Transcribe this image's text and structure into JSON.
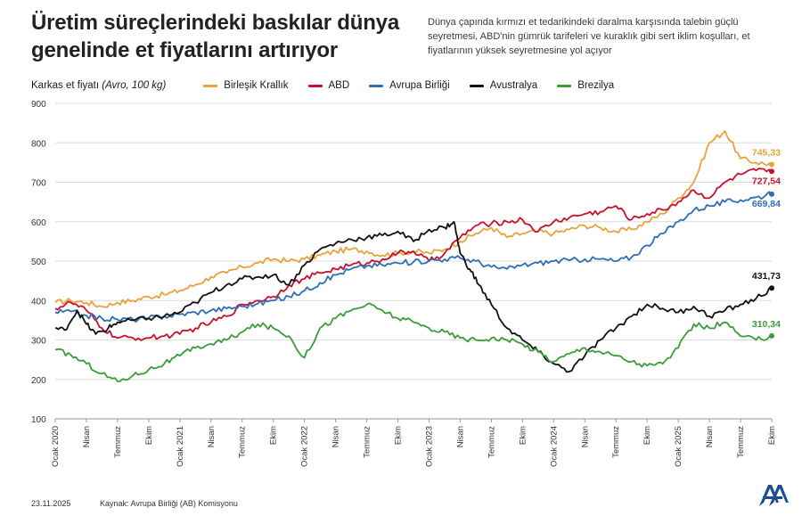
{
  "title": "Üretim süreçlerindeki baskılar dünya genelinde et fiyatlarını artırıyor",
  "subtitle": "Dünya çapında kırmızı et tedarikindeki daralma karşısında talebin güçlü seyretmesi, ABD'nin gümrük tarifeleri ve kuraklık gibi sert iklim koşulları, et fiyatlarının yüksek seyretmesine yol açıyor",
  "unit_label": "Karkas et fiyatı",
  "unit_label_italic": "(Avro, 100 kg)",
  "footer": {
    "date": "23.11.2025",
    "source": "Kaynak: Avrupa Birliği (AB) Komisyonu"
  },
  "chart_data": {
    "type": "line",
    "ylim": [
      100,
      900
    ],
    "yticks": [
      100,
      200,
      300,
      400,
      500,
      600,
      700,
      800,
      900
    ],
    "grid": true,
    "legend_position": "top",
    "x_tick_labels": [
      "Ocak 2020",
      "Nisan",
      "Temmuz",
      "Ekim",
      "Ocak 2021",
      "Nisan",
      "Temmuz",
      "Ekim",
      "Ocak 2022",
      "Nisan",
      "Temmuz",
      "Ekim",
      "Ocak 2023",
      "Nisan",
      "Temmuz",
      "Ekim",
      "Ocak 2024",
      "Nisan",
      "Temmuz",
      "Ekim",
      "Ocak 2025",
      "Nisan",
      "Temmuz",
      "Ekim"
    ],
    "x_range_months": [
      0,
      23
    ],
    "series": [
      {
        "name": "Birleşik Krallık",
        "color": "#E8A33A",
        "end_label": "745,33",
        "points": [
          [
            0,
            395
          ],
          [
            0.5,
            400
          ],
          [
            1,
            395
          ],
          [
            1.5,
            385
          ],
          [
            2,
            395
          ],
          [
            2.5,
            400
          ],
          [
            3,
            410
          ],
          [
            3.5,
            415
          ],
          [
            4,
            425
          ],
          [
            4.5,
            440
          ],
          [
            5,
            460
          ],
          [
            5.5,
            470
          ],
          [
            6,
            485
          ],
          [
            6.5,
            495
          ],
          [
            7,
            505
          ],
          [
            7.5,
            500
          ],
          [
            8,
            505
          ],
          [
            8.5,
            515
          ],
          [
            9,
            525
          ],
          [
            9.5,
            530
          ],
          [
            10,
            525
          ],
          [
            10.5,
            515
          ],
          [
            11,
            520
          ],
          [
            11.5,
            525
          ],
          [
            12,
            520
          ],
          [
            12.5,
            530
          ],
          [
            13,
            550
          ],
          [
            13.5,
            570
          ],
          [
            14,
            585
          ],
          [
            14.5,
            560
          ],
          [
            15,
            570
          ],
          [
            15.5,
            575
          ],
          [
            16,
            570
          ],
          [
            16.5,
            580
          ],
          [
            17,
            590
          ],
          [
            17.5,
            585
          ],
          [
            18,
            575
          ],
          [
            18.5,
            580
          ],
          [
            19,
            600
          ],
          [
            19.5,
            620
          ],
          [
            20,
            660
          ],
          [
            20.5,
            700
          ],
          [
            21,
            800
          ],
          [
            21.5,
            830
          ],
          [
            22,
            760
          ],
          [
            22.5,
            750
          ],
          [
            23,
            745.33
          ]
        ]
      },
      {
        "name": "ABD",
        "color": "#C8102E",
        "end_label": "727,54",
        "points": [
          [
            0,
            380
          ],
          [
            0.5,
            395
          ],
          [
            1,
            375
          ],
          [
            1.5,
            330
          ],
          [
            2,
            305
          ],
          [
            2.5,
            305
          ],
          [
            3,
            305
          ],
          [
            3.5,
            310
          ],
          [
            4,
            315
          ],
          [
            4.5,
            330
          ],
          [
            5,
            345
          ],
          [
            5.5,
            360
          ],
          [
            6,
            390
          ],
          [
            6.5,
            400
          ],
          [
            7,
            410
          ],
          [
            7.5,
            440
          ],
          [
            8,
            455
          ],
          [
            8.5,
            470
          ],
          [
            9,
            480
          ],
          [
            9.5,
            490
          ],
          [
            10,
            495
          ],
          [
            10.5,
            505
          ],
          [
            11,
            520
          ],
          [
            11.5,
            525
          ],
          [
            12,
            500
          ],
          [
            12.5,
            520
          ],
          [
            13,
            560
          ],
          [
            13.5,
            590
          ],
          [
            14,
            595
          ],
          [
            14.5,
            600
          ],
          [
            15,
            605
          ],
          [
            15.5,
            575
          ],
          [
            16,
            600
          ],
          [
            16.5,
            610
          ],
          [
            17,
            620
          ],
          [
            17.5,
            625
          ],
          [
            18,
            640
          ],
          [
            18.5,
            605
          ],
          [
            19,
            620
          ],
          [
            19.5,
            630
          ],
          [
            20,
            650
          ],
          [
            20.5,
            680
          ],
          [
            21,
            660
          ],
          [
            21.5,
            700
          ],
          [
            22,
            720
          ],
          [
            22.5,
            730
          ],
          [
            23,
            727.54
          ]
        ]
      },
      {
        "name": "Avrupa Birliği",
        "color": "#2F6DB5",
        "end_label": "669,84",
        "points": [
          [
            0,
            370
          ],
          [
            0.5,
            372
          ],
          [
            1,
            362
          ],
          [
            1.5,
            355
          ],
          [
            2,
            352
          ],
          [
            2.5,
            352
          ],
          [
            3,
            356
          ],
          [
            3.5,
            360
          ],
          [
            4,
            365
          ],
          [
            4.5,
            370
          ],
          [
            5,
            375
          ],
          [
            5.5,
            380
          ],
          [
            6,
            385
          ],
          [
            6.5,
            392
          ],
          [
            7,
            400
          ],
          [
            7.5,
            410
          ],
          [
            8,
            425
          ],
          [
            8.5,
            445
          ],
          [
            9,
            465
          ],
          [
            9.5,
            480
          ],
          [
            10,
            488
          ],
          [
            10.5,
            490
          ],
          [
            11,
            495
          ],
          [
            11.5,
            498
          ],
          [
            12,
            502
          ],
          [
            12.5,
            505
          ],
          [
            13,
            508
          ],
          [
            13.5,
            500
          ],
          [
            14,
            485
          ],
          [
            14.5,
            480
          ],
          [
            15,
            490
          ],
          [
            15.5,
            495
          ],
          [
            16,
            500
          ],
          [
            16.5,
            502
          ],
          [
            17,
            505
          ],
          [
            17.5,
            505
          ],
          [
            18,
            500
          ],
          [
            18.5,
            510
          ],
          [
            19,
            540
          ],
          [
            19.5,
            570
          ],
          [
            20,
            600
          ],
          [
            20.5,
            630
          ],
          [
            21,
            640
          ],
          [
            21.5,
            650
          ],
          [
            22,
            655
          ],
          [
            22.5,
            662
          ],
          [
            23,
            669.84
          ]
        ]
      },
      {
        "name": "Avustralya",
        "color": "#111111",
        "end_label": "431,73",
        "points": [
          [
            0,
            330
          ],
          [
            0.3,
            325
          ],
          [
            0.7,
            375
          ],
          [
            1,
            340
          ],
          [
            1.3,
            315
          ],
          [
            1.7,
            330
          ],
          [
            2,
            345
          ],
          [
            2.5,
            350
          ],
          [
            3,
            355
          ],
          [
            3.5,
            360
          ],
          [
            4,
            370
          ],
          [
            4.5,
            395
          ],
          [
            5,
            420
          ],
          [
            5.5,
            440
          ],
          [
            6,
            455
          ],
          [
            6.5,
            460
          ],
          [
            7,
            465
          ],
          [
            7.5,
            440
          ],
          [
            8,
            490
          ],
          [
            8.5,
            530
          ],
          [
            9,
            545
          ],
          [
            9.5,
            555
          ],
          [
            10,
            560
          ],
          [
            10.5,
            565
          ],
          [
            11,
            575
          ],
          [
            11.5,
            550
          ],
          [
            12,
            580
          ],
          [
            12.5,
            585
          ],
          [
            12.8,
            600
          ],
          [
            13,
            520
          ],
          [
            13.3,
            480
          ],
          [
            13.6,
            440
          ],
          [
            14,
            390
          ],
          [
            14.5,
            330
          ],
          [
            15,
            300
          ],
          [
            15.5,
            270
          ],
          [
            16,
            240
          ],
          [
            16.5,
            220
          ],
          [
            17,
            260
          ],
          [
            17.5,
            300
          ],
          [
            18,
            330
          ],
          [
            18.5,
            360
          ],
          [
            19,
            390
          ],
          [
            19.5,
            380
          ],
          [
            20,
            370
          ],
          [
            20.5,
            385
          ],
          [
            21,
            360
          ],
          [
            21.5,
            375
          ],
          [
            22,
            390
          ],
          [
            22.5,
            405
          ],
          [
            23,
            431.73
          ]
        ]
      },
      {
        "name": "Brezilya",
        "color": "#3A9C3A",
        "end_label": "310,34",
        "points": [
          [
            0,
            275
          ],
          [
            0.5,
            262
          ],
          [
            1,
            240
          ],
          [
            1.5,
            215
          ],
          [
            2,
            195
          ],
          [
            2.5,
            210
          ],
          [
            3,
            225
          ],
          [
            3.5,
            240
          ],
          [
            4,
            260
          ],
          [
            4.5,
            280
          ],
          [
            5,
            290
          ],
          [
            5.5,
            300
          ],
          [
            6,
            320
          ],
          [
            6.5,
            340
          ],
          [
            7,
            330
          ],
          [
            7.5,
            310
          ],
          [
            8,
            255
          ],
          [
            8.5,
            330
          ],
          [
            9,
            355
          ],
          [
            9.5,
            375
          ],
          [
            10,
            390
          ],
          [
            10.5,
            375
          ],
          [
            11,
            355
          ],
          [
            11.5,
            345
          ],
          [
            12,
            330
          ],
          [
            12.5,
            320
          ],
          [
            13,
            305
          ],
          [
            13.5,
            300
          ],
          [
            14,
            305
          ],
          [
            14.5,
            300
          ],
          [
            15,
            290
          ],
          [
            15.5,
            270
          ],
          [
            16,
            245
          ],
          [
            16.5,
            265
          ],
          [
            17,
            280
          ],
          [
            17.5,
            270
          ],
          [
            18,
            260
          ],
          [
            18.5,
            245
          ],
          [
            19,
            235
          ],
          [
            19.5,
            240
          ],
          [
            20,
            280
          ],
          [
            20.5,
            340
          ],
          [
            21,
            330
          ],
          [
            21.5,
            345
          ],
          [
            22,
            310
          ],
          [
            22.5,
            300
          ],
          [
            23,
            310.34
          ]
        ]
      }
    ]
  }
}
